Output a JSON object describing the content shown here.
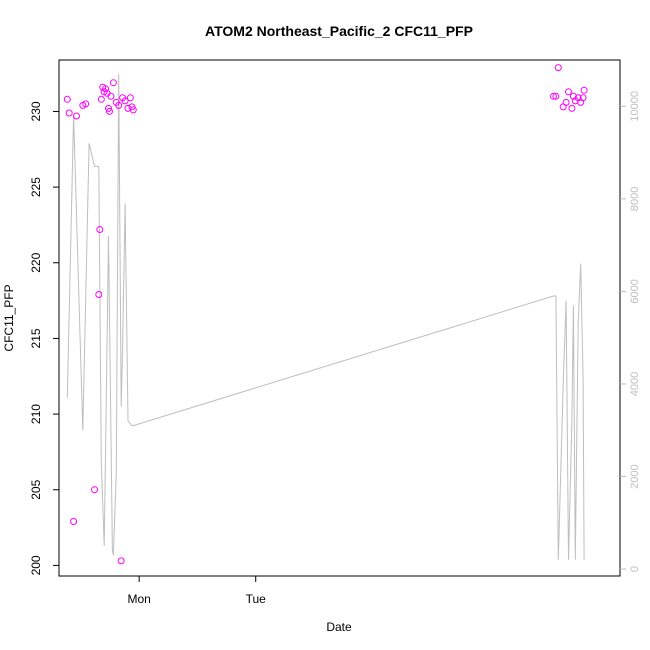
{
  "chart_data": {
    "type": "scatter",
    "title": "ATOM2 Northeast_Pacific_2 CFC11_PFP",
    "xlabel": "Date",
    "ylabel": "CFC11_PFP",
    "x_ticks": [
      "Mon",
      "Tue"
    ],
    "y_ticks": [
      "200",
      "205",
      "210",
      "215",
      "220",
      "225",
      "230"
    ],
    "y_right_ticks": [
      "0",
      "2000",
      "4000",
      "6000",
      "8000",
      "10000"
    ],
    "xlim_hours": [
      -16.5,
      99
    ],
    "ylim": [
      199.3,
      233.4
    ],
    "y_right_lim": [
      -150,
      11000
    ],
    "colors": {
      "points": "#ff00ff",
      "line": "#bebebe",
      "right_axis": "#bebebe",
      "axis": "#000000"
    },
    "series": [
      {
        "role": "scatter",
        "axis": "left",
        "x_hours": [
          -14.8,
          -14.4,
          -13.5,
          -12.9,
          -11.6,
          -11.0,
          -9.2,
          -8.3,
          -8.1,
          -7.8,
          -7.5,
          -7.2,
          -6.9,
          -6.6,
          -6.3,
          -6.1,
          -5.8,
          -5.3,
          -4.7,
          -4.2,
          -3.7,
          -3.4,
          -2.9,
          -2.3,
          -1.8,
          -1.5,
          -1.2,
          85.3,
          85.8,
          86.3,
          87.3,
          87.9,
          88.4,
          89.1,
          89.4,
          89.8,
          90.4,
          90.9,
          91.4,
          91.6
        ],
        "values": [
          230.8,
          229.9,
          202.9,
          229.7,
          230.4,
          230.5,
          205.0,
          217.9,
          222.2,
          230.8,
          231.6,
          231.3,
          231.5,
          231.2,
          230.2,
          230.0,
          231.0,
          231.9,
          230.6,
          230.4,
          200.3,
          230.9,
          230.7,
          230.2,
          230.9,
          230.3,
          230.1,
          231.0,
          231.0,
          232.9,
          230.3,
          230.6,
          231.3,
          230.2,
          231.0,
          230.7,
          230.9,
          230.6,
          230.9,
          231.4
        ]
      },
      {
        "role": "line",
        "axis": "right",
        "x_hours": [
          -14.8,
          -13.5,
          -11.6,
          -10.3,
          -9.2,
          -8.3,
          -7.8,
          -7.2,
          -6.9,
          -6.3,
          -5.5,
          -5.3,
          -4.7,
          -4.2,
          -3.7,
          -3.4,
          -2.9,
          -2.3,
          -1.5,
          -1.2,
          85.3,
          85.8,
          86.3,
          87.3,
          87.9,
          88.4,
          89.1,
          89.4,
          89.8,
          90.4,
          90.9,
          91.4,
          91.6
        ],
        "values": [
          3700,
          9800,
          3000,
          9200,
          8700,
          8700,
          2300,
          500,
          2600,
          7200,
          400,
          300,
          2100,
          10700,
          3500,
          4800,
          7900,
          3200,
          3100,
          3100,
          5900,
          5900,
          200,
          4000,
          5800,
          200,
          3200,
          5700,
          200,
          5300,
          6600,
          4100,
          200
        ]
      }
    ]
  }
}
